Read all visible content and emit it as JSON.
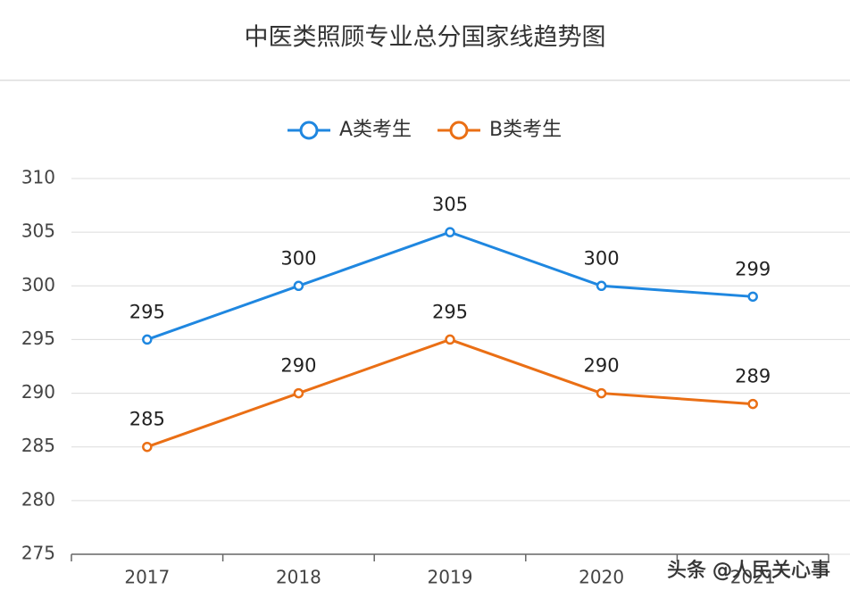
{
  "chart_data": {
    "type": "line",
    "title": "中医类照顾专业总分国家线趋势图",
    "categories": [
      "2017",
      "2018",
      "2019",
      "2020",
      "2021"
    ],
    "series": [
      {
        "name": "A类考生",
        "color": "#1f87e0",
        "values": [
          295,
          300,
          305,
          300,
          299
        ]
      },
      {
        "name": "B类考生",
        "color": "#ea6f15",
        "values": [
          285,
          290,
          295,
          290,
          289
        ]
      }
    ],
    "ylim": [
      275,
      310
    ],
    "yticks": [
      275,
      280,
      285,
      290,
      295,
      300,
      305,
      310
    ],
    "grid": true,
    "legend": "top",
    "watermark": "头条 @人民关心事"
  }
}
